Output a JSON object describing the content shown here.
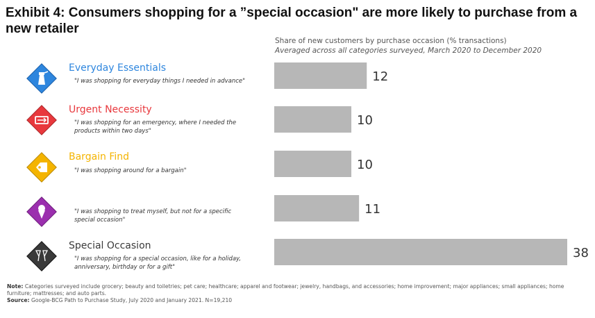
{
  "title": "Exhibit 4: Consumers shopping for a ”special occasion\" are more likely to purchase from a new retailer",
  "chart_data": {
    "type": "bar",
    "orientation": "horizontal",
    "title": "Share of new customers by purchase occasion (% transactions)",
    "subtitle": "Averaged across all categories surveyed, March 2020 to December 2020",
    "categories": [
      "Everyday Essentials",
      "Urgent Necessity",
      "Bargain Find",
      "",
      "Special Occasion"
    ],
    "values": [
      12,
      10,
      10,
      11,
      38
    ],
    "xlim": [
      0,
      38
    ],
    "grid": false,
    "bar_color": "#b7b7b7"
  },
  "categories": [
    {
      "name": "Everyday Essentials",
      "color": "#2e86de",
      "quote": "\"I was shopping for everyday things I needed in advance\"",
      "icon": "spray-bottle-icon"
    },
    {
      "name": "Urgent Necessity",
      "color": "#e8383d",
      "quote": "\"I was shopping for an emergency, where I needed the products within two days\"",
      "icon": "emergency-sign-icon"
    },
    {
      "name": "Bargain Find",
      "color": "#f4b400",
      "quote": "\"I was shopping around for a bargain\"",
      "icon": "price-tag-icon"
    },
    {
      "name": "",
      "color": "#9b2fae",
      "quote": "\"I was shopping to treat myself, but not for a specific special occasion\"",
      "icon": "ice-cream-icon"
    },
    {
      "name": "Special Occasion",
      "color": "#3a3a3a",
      "quote": "\"I was shopping for a special occasion, like for a holiday, anniversary, birthday or for a gift\"",
      "icon": "champagne-glasses-icon"
    }
  ],
  "footer": {
    "note_label": "Note:",
    "note_text": "Categories surveyed include grocery; beauty and toiletries; pet care; healthcare; apparel and footwear; jewelry, handbags, and accessories; home improvement; major appliances; small appliances; home furniture; mattresses; and auto parts.",
    "source_label": "Source:",
    "source_text": "Google-BCG Path to Purchase Study, July 2020 and January 2021. N=19,210"
  }
}
